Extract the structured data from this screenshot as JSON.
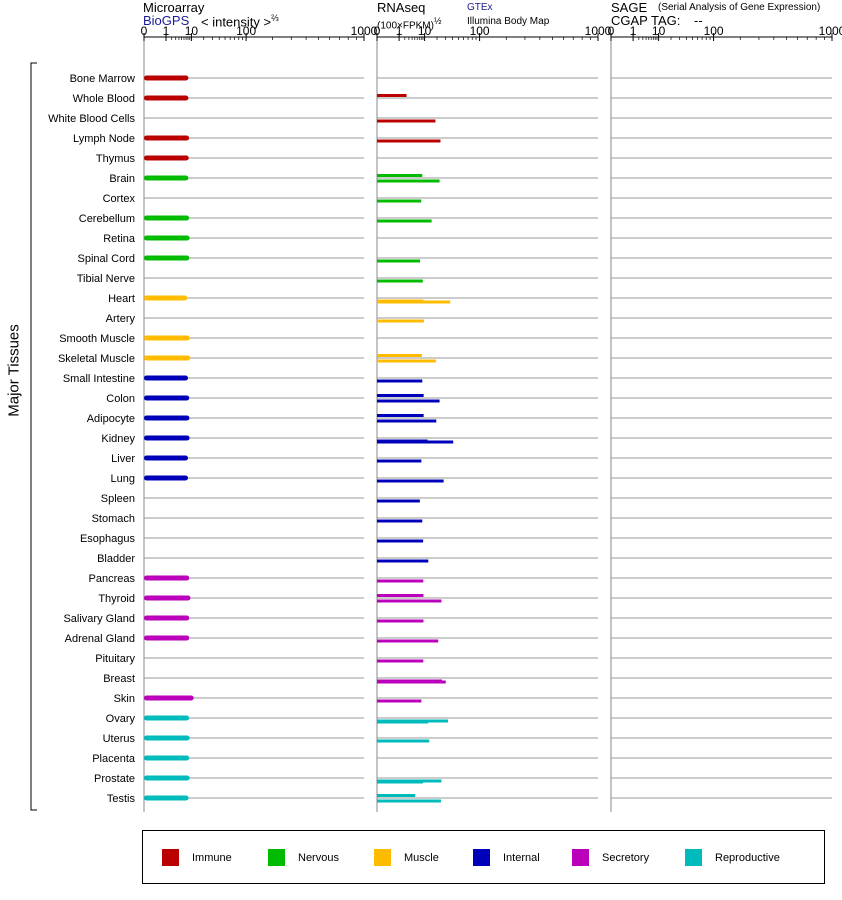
{
  "panels": {
    "microarray": {
      "title": "Microarray",
      "source_link": "BioGPS",
      "scale_label": "< intensity >",
      "scale_exponent": "⅔"
    },
    "rnaseq": {
      "title": "RNAseq",
      "scale_label": "(100×FPKM)",
      "scale_exponent": "½",
      "source_gtex": "GTEx",
      "source_illumina": "Illumina Body Map"
    },
    "sage": {
      "title": "SAGE",
      "subtitle": "(Serial Analysis of Gene Expression)",
      "tag_label": "CGAP TAG:",
      "tag_value": "--"
    }
  },
  "y_axis_label": "Major Tissues",
  "chart_data": {
    "type": "bar",
    "x_scale": "power",
    "x_ticks": [
      "0",
      "1",
      "10",
      "100",
      "1000"
    ],
    "xlim": [
      0,
      1000
    ],
    "categories": [
      "Bone Marrow",
      "Whole Blood",
      "White Blood Cells",
      "Lymph Node",
      "Thymus",
      "Brain",
      "Cortex",
      "Cerebellum",
      "Retina",
      "Spinal Cord",
      "Tibial Nerve",
      "Heart",
      "Artery",
      "Smooth Muscle",
      "Skeletal Muscle",
      "Small Intestine",
      "Colon",
      "Adipocyte",
      "Kidney",
      "Liver",
      "Lung",
      "Spleen",
      "Stomach",
      "Esophagus",
      "Bladder",
      "Pancreas",
      "Thyroid",
      "Salivary Gland",
      "Adrenal Gland",
      "Pituitary",
      "Breast",
      "Skin",
      "Ovary",
      "Uterus",
      "Placenta",
      "Prostate",
      "Testis"
    ],
    "groups": [
      "Immune",
      "Immune",
      "Immune",
      "Immune",
      "Immune",
      "Nervous",
      "Nervous",
      "Nervous",
      "Nervous",
      "Nervous",
      "Nervous",
      "Muscle",
      "Muscle",
      "Muscle",
      "Muscle",
      "Internal",
      "Internal",
      "Internal",
      "Internal",
      "Internal",
      "Internal",
      "Internal",
      "Internal",
      "Internal",
      "Internal",
      "Secretory",
      "Secretory",
      "Secretory",
      "Secretory",
      "Secretory",
      "Secretory",
      "Secretory",
      "Reproductive",
      "Reproductive",
      "Reproductive",
      "Reproductive",
      "Reproductive"
    ],
    "group_colors": {
      "Immune": "#bb0000",
      "Nervous": "#00bb00",
      "Muscle": "#ffbb00",
      "Internal": "#0000bb",
      "Secretory": "#bb00bb",
      "Reproductive": "#00bbbb"
    },
    "series": [
      {
        "name": "Microarray",
        "values": [
          8.2,
          8.2,
          null,
          8.6,
          8.4,
          8.2,
          null,
          8.6,
          8.9,
          8.7,
          null,
          7.6,
          null,
          9.0,
          9.3,
          8.0,
          8.7,
          8.8,
          8.9,
          8.0,
          8.0,
          null,
          null,
          null,
          null,
          8.7,
          9.4,
          8.7,
          8.7,
          null,
          null,
          11.5,
          8.6,
          8.9,
          8.7,
          8.9,
          8.3
        ]
      },
      {
        "name": "GTEx",
        "values": [
          null,
          2.4,
          null,
          null,
          null,
          8.6,
          null,
          null,
          null,
          null,
          null,
          null,
          null,
          null,
          8.4,
          null,
          9.4,
          9.4,
          null,
          null,
          null,
          null,
          null,
          null,
          null,
          null,
          9.3,
          null,
          null,
          null,
          null,
          null,
          null,
          null,
          null,
          null,
          5.2
        ]
      },
      {
        "name": "Illumina Body Map",
        "values": [
          null,
          null,
          18.5,
          23.7,
          null,
          22.7,
          8.0,
          15.1,
          null,
          7.4,
          8.9,
          9.3,
          9.6,
          null,
          18.9,
          8.6,
          22.7,
          19.3,
          12.0,
          8.1,
          27.4,
          7.3,
          8.6,
          9.1,
          12.5,
          9.2,
          24.8,
          9.3,
          21.3,
          9.2,
          25.6,
          8.1,
          33.2,
          13.2,
          null,
          24.8,
          24.2
        ]
      },
      {
        "name": "Illumina Body Map",
        "values": [
          null,
          null,
          null,
          null,
          null,
          null,
          null,
          null,
          null,
          null,
          null,
          36.4,
          null,
          null,
          null,
          null,
          null,
          null,
          41.0,
          null,
          null,
          null,
          null,
          null,
          null,
          null,
          null,
          null,
          null,
          null,
          30.1,
          null,
          12.5,
          null,
          null,
          9.0,
          null
        ]
      }
    ],
    "legend": [
      "Immune",
      "Nervous",
      "Muscle",
      "Internal",
      "Secretory",
      "Reproductive"
    ],
    "legend_placement": "bottom",
    "grid": true
  }
}
